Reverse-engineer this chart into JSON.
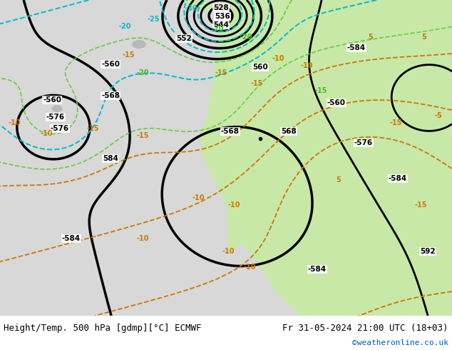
{
  "title_left": "Height/Temp. 500 hPa [gdmp][°C] ECMWF",
  "title_right": "Fr 31-05-2024 21:00 UTC (18+03)",
  "watermark": "©weatheronline.co.uk",
  "bg_ocean_color": "#d8d8d8",
  "bg_land_color": "#c8e8a8",
  "height_contour_color": "#000000",
  "temp_orange_color": "#cc7700",
  "temp_cyan_color": "#00bbcc",
  "temp_green_color": "#44cc44",
  "label_fontsize": 8,
  "title_fontsize": 9,
  "watermark_color": "#0055cc",
  "bottom_bar_height": 48
}
